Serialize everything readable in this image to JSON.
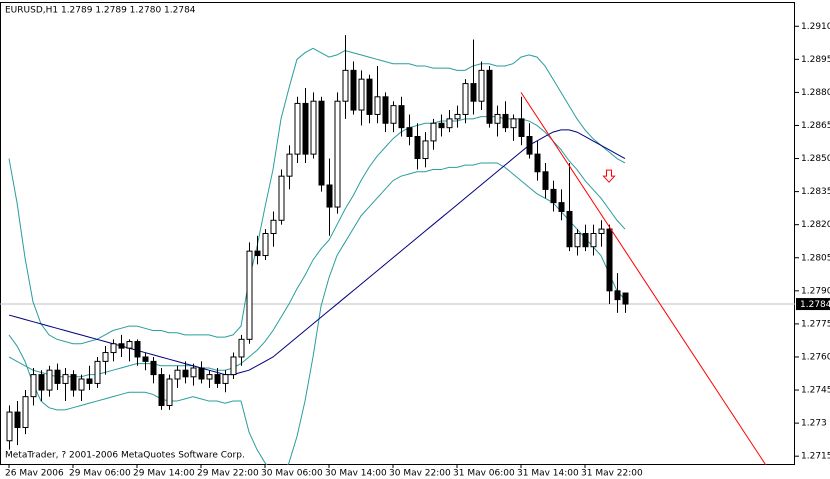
{
  "chart_data": {
    "type": "candlestick",
    "title": "EURUSD,H1  1.2789 1.2789 1.2780 1.2784",
    "footer": "MetaTrader, ? 2001-2006 MetaQuotes Software Corp.",
    "categories": [
      "26 Mav 2006",
      null,
      null,
      null,
      null,
      null,
      null,
      null,
      "29 Mav 06:00",
      null,
      null,
      null,
      null,
      null,
      null,
      null,
      "29 Mav 14:00",
      null,
      null,
      null,
      null,
      null,
      null,
      null,
      "29 Mav 22:00",
      null,
      null,
      null,
      null,
      null,
      null,
      null,
      "30 Mav 06:00",
      null,
      null,
      null,
      null,
      null,
      null,
      null,
      "30 Mav 14:00",
      null,
      null,
      null,
      null,
      null,
      null,
      null,
      "30 Mav 22:00",
      null,
      null,
      null,
      null,
      null,
      null,
      null,
      "31 Mav 06:00",
      null,
      null,
      null,
      null,
      null,
      null,
      null,
      "31 Mav 14:00",
      null,
      null,
      null,
      null,
      null,
      null,
      null,
      "31 Mav 22:00",
      null,
      null,
      null,
      null,
      null
    ],
    "open": [
      1.2722,
      1.2735,
      1.2728,
      1.2742,
      1.2752,
      1.2745,
      1.2754,
      1.2748,
      1.2752,
      1.2745,
      1.275,
      1.2748,
      1.2758,
      1.2762,
      1.2766,
      1.2764,
      1.2767,
      1.276,
      1.2758,
      1.2752,
      1.2738,
      1.275,
      1.2754,
      1.2751,
      1.2755,
      1.275,
      1.2752,
      1.2748,
      1.2752,
      1.276,
      1.2768,
      1.2808,
      1.2806,
      1.2816,
      1.2822,
      1.2842,
      1.2852,
      1.2875,
      1.2852,
      1.2876,
      1.2838,
      1.2828,
      1.2876,
      1.289,
      1.2872,
      1.2886,
      1.287,
      1.2878,
      1.2866,
      1.2874,
      1.2864,
      1.286,
      1.285,
      1.2858,
      1.2866,
      1.2864,
      1.2868,
      1.287,
      1.2884,
      1.2876,
      1.289,
      1.2866,
      1.287,
      1.2864,
      1.2868,
      1.286,
      1.2852,
      1.2844,
      1.2836,
      1.283,
      1.2826,
      1.281,
      1.2816,
      1.281,
      1.2816,
      1.2818,
      1.279,
      1.2789
    ],
    "high": [
      1.2738,
      1.274,
      1.2745,
      1.2755,
      1.2754,
      1.2756,
      1.2757,
      1.2755,
      1.2754,
      1.2752,
      1.2756,
      1.276,
      1.2765,
      1.2768,
      1.277,
      1.2768,
      1.2768,
      1.2762,
      1.276,
      1.2755,
      1.2752,
      1.2756,
      1.2758,
      1.2757,
      1.2758,
      1.2754,
      1.2755,
      1.2754,
      1.2762,
      1.277,
      1.2812,
      1.2815,
      1.2818,
      1.2826,
      1.2845,
      1.2856,
      1.2878,
      1.2882,
      1.288,
      1.2878,
      1.285,
      1.288,
      1.2906,
      1.2894,
      1.289,
      1.2888,
      1.2892,
      1.288,
      1.2876,
      1.2878,
      1.287,
      1.2866,
      1.2862,
      1.2868,
      1.287,
      1.2872,
      1.2874,
      1.2886,
      1.2904,
      1.2894,
      1.2892,
      1.2874,
      1.2876,
      1.287,
      1.2878,
      1.2866,
      1.2858,
      1.2848,
      1.284,
      1.2836,
      1.2848,
      1.2818,
      1.282,
      1.282,
      1.2822,
      1.282,
      1.2798,
      1.2789
    ],
    "low": [
      1.2718,
      1.272,
      1.2725,
      1.2738,
      1.274,
      1.2742,
      1.2745,
      1.274,
      1.2742,
      1.274,
      1.2745,
      1.2746,
      1.2752,
      1.2758,
      1.276,
      1.2758,
      1.2756,
      1.2754,
      1.2748,
      1.2736,
      1.2736,
      1.2746,
      1.2748,
      1.2747,
      1.2748,
      1.2746,
      1.2746,
      1.2744,
      1.275,
      1.2756,
      1.2766,
      1.2802,
      1.2804,
      1.281,
      1.282,
      1.2836,
      1.2848,
      1.2848,
      1.285,
      1.2835,
      1.2815,
      1.2825,
      1.2868,
      1.287,
      1.2865,
      1.2866,
      1.2866,
      1.2862,
      1.2862,
      1.286,
      1.2856,
      1.2845,
      1.2846,
      1.2854,
      1.286,
      1.2862,
      1.2864,
      1.2866,
      1.287,
      1.2872,
      1.2864,
      1.286,
      1.2862,
      1.2858,
      1.2856,
      1.285,
      1.284,
      1.2832,
      1.2826,
      1.2822,
      1.2808,
      1.2806,
      1.2808,
      1.2806,
      1.281,
      1.2784,
      1.278,
      1.278
    ],
    "close": [
      1.2735,
      1.2728,
      1.2742,
      1.2752,
      1.2745,
      1.2754,
      1.2748,
      1.2752,
      1.2745,
      1.275,
      1.2748,
      1.2758,
      1.2762,
      1.2766,
      1.2764,
      1.2767,
      1.276,
      1.2758,
      1.2752,
      1.2738,
      1.275,
      1.2754,
      1.2751,
      1.2755,
      1.275,
      1.2752,
      1.2748,
      1.2752,
      1.276,
      1.2768,
      1.2808,
      1.2806,
      1.2816,
      1.2822,
      1.2842,
      1.2852,
      1.2875,
      1.2852,
      1.2876,
      1.2838,
      1.2828,
      1.2876,
      1.289,
      1.2872,
      1.2886,
      1.287,
      1.2878,
      1.2866,
      1.2874,
      1.2864,
      1.286,
      1.285,
      1.2858,
      1.2866,
      1.2864,
      1.2868,
      1.287,
      1.2884,
      1.2876,
      1.289,
      1.2866,
      1.287,
      1.2864,
      1.2868,
      1.286,
      1.2852,
      1.2844,
      1.2836,
      1.283,
      1.2826,
      1.281,
      1.2816,
      1.281,
      1.2816,
      1.2818,
      1.279,
      1.2786,
      1.2784
    ],
    "up_color": "#ffffff",
    "down_color": "#000000",
    "ylim": [
      1.2711,
      1.2921
    ],
    "yticks": [
      1.2715,
      1.273,
      1.2745,
      {
        "value": 1.276,
        "label": "1.2760"
      },
      1.2775,
      {
        "value": 1.279,
        "label": "1.2790"
      },
      1.2805,
      {
        "value": 1.282,
        "label": "1.2820"
      },
      1.2835,
      {
        "value": 1.285,
        "label": "1.2850"
      },
      1.2865,
      {
        "value": 1.288,
        "label": "1.2880"
      },
      1.2895,
      {
        "value": 1.291,
        "label": "1.2910"
      }
    ],
    "current_price": 1.2784,
    "indicators": [
      {
        "color": "#2a9d9d",
        "values": [
          1.285,
          1.283,
          1.2805,
          1.2785,
          1.2775,
          1.277,
          1.2768,
          1.2767,
          1.2766,
          1.2766,
          1.2767,
          1.2768,
          1.277,
          1.2772,
          1.2773,
          1.2774,
          1.2774,
          1.2773,
          1.2772,
          1.2772,
          1.2771,
          1.2771,
          1.277,
          1.277,
          1.277,
          1.277,
          1.2769,
          1.2769,
          1.277,
          1.2774,
          1.2795,
          1.281,
          1.2828,
          1.2845,
          1.2868,
          1.2882,
          1.2895,
          1.2898,
          1.29,
          1.2898,
          1.2896,
          1.2897,
          1.2899,
          1.2898,
          1.2897,
          1.2896,
          1.2895,
          1.2894,
          1.2893,
          1.2893,
          1.2893,
          1.2892,
          1.2892,
          1.2891,
          1.2891,
          1.2891,
          1.289,
          1.289,
          1.2892,
          1.2893,
          1.2893,
          1.2892,
          1.2892,
          1.2893,
          1.2896,
          1.2897,
          1.2896,
          1.2892,
          1.2886,
          1.288,
          1.2874,
          1.2868,
          1.2863,
          1.2859,
          1.2856,
          1.2853,
          1.285,
          1.2848
        ]
      },
      {
        "color": "#2a9d9d",
        "values": [
          1.276,
          1.2758,
          1.2756,
          1.2754,
          1.2753,
          1.2752,
          1.2751,
          1.2751,
          1.2751,
          1.2751,
          1.2752,
          1.2752,
          1.2753,
          1.2754,
          1.2755,
          1.2756,
          1.2757,
          1.2757,
          1.2757,
          1.2756,
          1.2756,
          1.2756,
          1.2756,
          1.2756,
          1.2755,
          1.2755,
          1.2754,
          1.2754,
          1.2755,
          1.2757,
          1.276,
          1.2763,
          1.2767,
          1.2772,
          1.2778,
          1.2784,
          1.2791,
          1.2797,
          1.2804,
          1.2809,
          1.2813,
          1.282,
          1.2827,
          1.2833,
          1.284,
          1.2846,
          1.2851,
          1.2855,
          1.2859,
          1.2862,
          1.2864,
          1.2865,
          1.2866,
          1.2866,
          1.2867,
          1.2867,
          1.2867,
          1.2868,
          1.2868,
          1.2869,
          1.2869,
          1.2869,
          1.2868,
          1.2868,
          1.2868,
          1.2867,
          1.2865,
          1.2862,
          1.2858,
          1.2854,
          1.2849,
          1.2845,
          1.284,
          1.2836,
          1.2832,
          1.2827,
          1.2822,
          1.2818
        ]
      },
      {
        "color": "#2a9d9d",
        "values": [
          1.277,
          1.2765,
          1.2758,
          1.2748,
          1.274,
          1.2737,
          1.2736,
          1.2736,
          1.2737,
          1.2738,
          1.2739,
          1.274,
          1.2741,
          1.2742,
          1.2743,
          1.2744,
          1.2744,
          1.2744,
          1.2743,
          1.2741,
          1.274,
          1.274,
          1.2741,
          1.2742,
          1.2741,
          1.274,
          1.274,
          1.2739,
          1.274,
          1.274,
          1.2726,
          1.2718,
          1.2712,
          1.2708,
          1.2706,
          1.2712,
          1.2724,
          1.274,
          1.276,
          1.2783,
          1.2796,
          1.2806,
          1.2812,
          1.2818,
          1.2824,
          1.2828,
          1.2832,
          1.2836,
          1.284,
          1.2842,
          1.2843,
          1.2844,
          1.2844,
          1.2845,
          1.2845,
          1.2846,
          1.2846,
          1.2847,
          1.2847,
          1.2848,
          1.2848,
          1.2848,
          1.2846,
          1.2843,
          1.284,
          1.2837,
          1.2834,
          1.2832,
          1.283,
          1.2826,
          1.2822,
          1.2818,
          1.2814,
          1.281,
          1.2806,
          1.2798,
          1.279,
          1.2786
        ]
      },
      {
        "color": "#000080",
        "values": [
          1.2779,
          1.2778,
          1.2777,
          1.2776,
          1.2775,
          1.2774,
          1.2773,
          1.2772,
          1.2771,
          1.277,
          1.2769,
          1.2768,
          1.2767,
          1.2766,
          1.2765,
          1.2764,
          1.2763,
          1.2762,
          1.2761,
          1.276,
          1.2759,
          1.2758,
          1.2757,
          1.2756,
          1.2755,
          1.2754,
          1.2753,
          1.2752,
          1.2752,
          1.2753,
          1.2754,
          1.2756,
          1.2758,
          1.276,
          1.2763,
          1.2766,
          1.2769,
          1.2772,
          1.2775,
          1.2778,
          1.2781,
          1.2784,
          1.2787,
          1.279,
          1.2793,
          1.2796,
          1.2799,
          1.2802,
          1.2805,
          1.2808,
          1.2811,
          1.2814,
          1.2817,
          1.282,
          1.2823,
          1.2826,
          1.2829,
          1.2832,
          1.2835,
          1.2838,
          1.2841,
          1.2844,
          1.2847,
          1.285,
          1.2853,
          1.2856,
          1.2858,
          1.286,
          1.2862,
          1.2863,
          1.2863,
          1.2862,
          1.286,
          1.2858,
          1.2856,
          1.2854,
          1.2852,
          1.285
        ]
      }
    ],
    "trendline": {
      "color": "#ff0000",
      "x": [
        64,
        94.6
      ],
      "y": [
        1.288,
        1.2711
      ]
    },
    "arrow": {
      "color": "#ff0000",
      "x": 75,
      "y": 1.2842
    }
  }
}
